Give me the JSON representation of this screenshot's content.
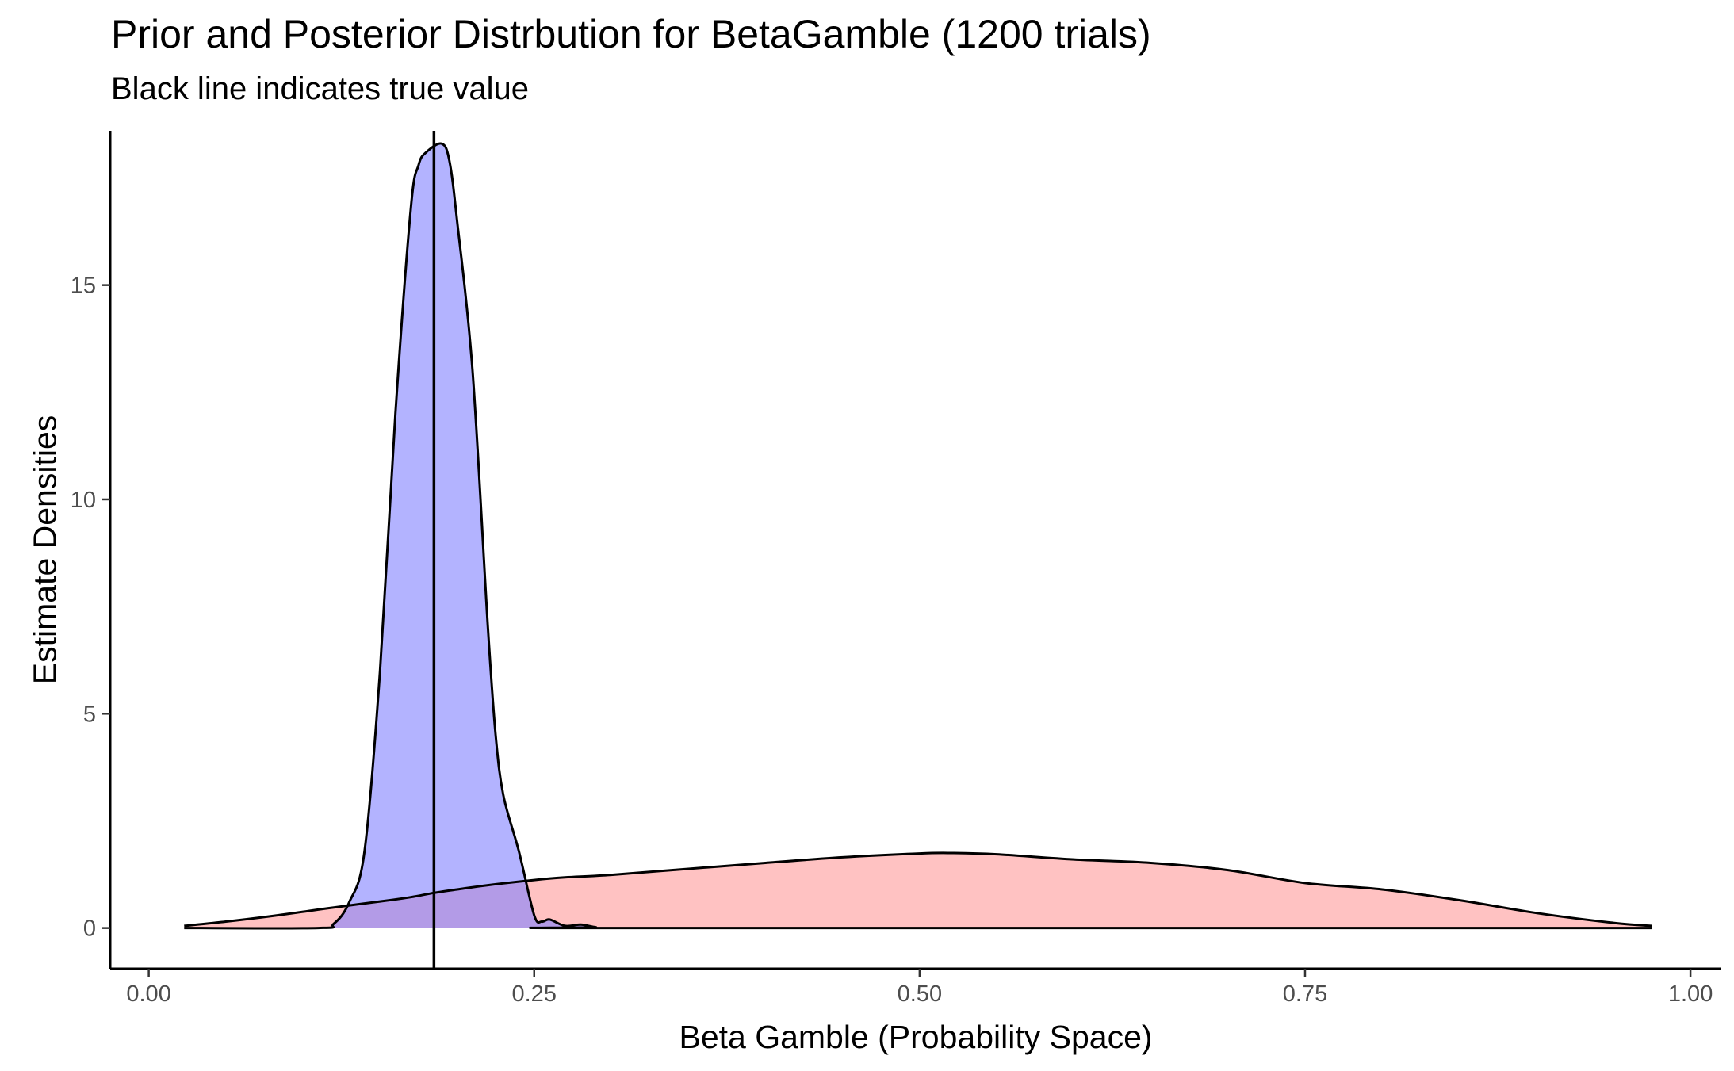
{
  "chart_data": {
    "type": "area",
    "title": "Prior and Posterior Distrbution for BetaGamble (1200 trials)",
    "subtitle": "Black line indicates true value",
    "xlabel": "Beta Gamble (Probability Space)",
    "ylabel": "Estimate Densities",
    "xlim": [
      -0.025,
      1.02
    ],
    "ylim": [
      -0.95,
      18.6
    ],
    "x_ticks": [
      0,
      0.25,
      0.5,
      0.75,
      1
    ],
    "x_tick_labels": [
      "0.00",
      "0.25",
      "0.50",
      "0.75",
      "1.00"
    ],
    "y_ticks": [
      0,
      5,
      10,
      15
    ],
    "y_tick_labels": [
      "0",
      "5",
      "10",
      "15"
    ],
    "grid": false,
    "legend": "none",
    "true_value": 0.185,
    "series": [
      {
        "color": "#ff9999",
        "x": [
          0.023,
          0.05,
          0.08,
          0.1,
          0.12,
          0.15,
          0.17,
          0.185,
          0.2,
          0.22,
          0.25,
          0.27,
          0.3,
          0.35,
          0.4,
          0.45,
          0.5,
          0.52,
          0.55,
          0.6,
          0.65,
          0.7,
          0.75,
          0.8,
          0.85,
          0.9,
          0.95,
          0.975
        ],
        "y": [
          0.05,
          0.15,
          0.28,
          0.38,
          0.48,
          0.62,
          0.72,
          0.82,
          0.9,
          1.0,
          1.12,
          1.18,
          1.24,
          1.38,
          1.52,
          1.65,
          1.74,
          1.75,
          1.72,
          1.6,
          1.52,
          1.35,
          1.05,
          0.9,
          0.65,
          0.35,
          0.12,
          0.05
        ]
      },
      {
        "color": "#8080ff",
        "x": [
          0.023,
          0.11,
          0.12,
          0.13,
          0.14,
          0.15,
          0.16,
          0.17,
          0.175,
          0.18,
          0.19,
          0.195,
          0.2,
          0.21,
          0.22,
          0.225,
          0.23,
          0.24,
          0.25,
          0.255,
          0.26,
          0.27,
          0.28,
          0.29,
          0.3,
          0.975
        ],
        "y": [
          0,
          0,
          0.1,
          0.6,
          1.8,
          6,
          12,
          16.8,
          17.8,
          18.1,
          18.3,
          17.9,
          16.5,
          13,
          7,
          4.5,
          3.1,
          1.8,
          0.3,
          0.15,
          0.2,
          0.05,
          0.08,
          0.02,
          0,
          0
        ]
      }
    ]
  }
}
